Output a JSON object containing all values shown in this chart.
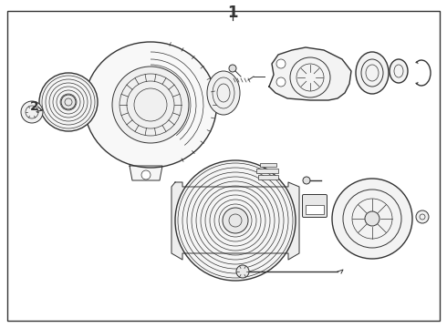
{
  "background_color": "#ffffff",
  "border_color": "#333333",
  "line_color": "#333333",
  "fill_light": "#f5f5f5",
  "fill_white": "#ffffff",
  "label_1": "1",
  "label_2": "2",
  "figsize": [
    4.9,
    3.6
  ],
  "dpi": 100,
  "lw_main": 1.0,
  "lw_med": 0.7,
  "lw_thin": 0.5
}
